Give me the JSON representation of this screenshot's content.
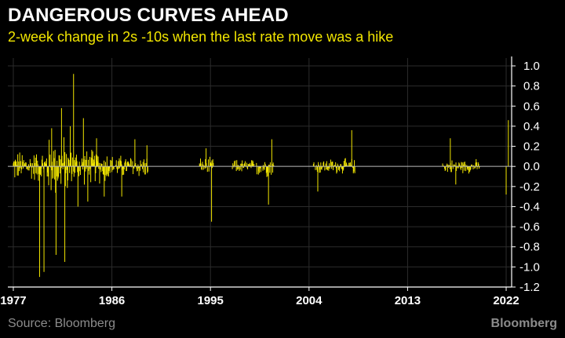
{
  "chart_data": {
    "type": "bar",
    "title": "DANGEROUS CURVES AHEAD",
    "subtitle": "2-week change in 2s -10s when the last rate move was a hike",
    "xlabel": "",
    "ylabel": "",
    "xlim": [
      1976.5,
      2022.5
    ],
    "ylim": [
      -1.2,
      1.0
    ],
    "y_ticks": [
      1.0,
      0.8,
      0.6,
      0.4,
      0.2,
      0.0,
      -0.2,
      -0.4,
      -0.6,
      -0.8,
      -1.0,
      -1.2
    ],
    "y_tick_labels": [
      "1.0",
      "0.8",
      "0.6",
      "0.4",
      "0.2",
      "0.0",
      "-0.2",
      "-0.4",
      "-0.6",
      "-0.8",
      "-1.0",
      "-1.2"
    ],
    "x_ticks": [
      1977,
      1986,
      1995,
      2004,
      2013,
      2022
    ],
    "x_tick_labels": [
      "1977",
      "1986",
      "1995",
      "2004",
      "2013",
      "2022"
    ],
    "y_axis_position": "right",
    "grid": true,
    "color": "#f2e600",
    "episodes": [
      {
        "start": 1977.0,
        "end": 1980.0,
        "amp": 0.18
      },
      {
        "start": 1980.0,
        "end": 1982.0,
        "amp": 0.35
      },
      {
        "start": 1982.0,
        "end": 1986.0,
        "amp": 0.2
      },
      {
        "start": 1986.0,
        "end": 1989.3,
        "amp": 0.13
      },
      {
        "start": 1994.0,
        "end": 1995.3,
        "amp": 0.1
      },
      {
        "start": 1997.0,
        "end": 1999.0,
        "amp": 0.08
      },
      {
        "start": 1999.2,
        "end": 2000.8,
        "amp": 0.12
      },
      {
        "start": 2004.4,
        "end": 2008.2,
        "amp": 0.09
      },
      {
        "start": 2016.2,
        "end": 2019.6,
        "amp": 0.08
      }
    ],
    "spikes": [
      {
        "x": 1979.4,
        "y": -1.1
      },
      {
        "x": 1979.8,
        "y": -1.05
      },
      {
        "x": 1980.5,
        "y": 0.38
      },
      {
        "x": 1980.9,
        "y": -0.88
      },
      {
        "x": 1981.4,
        "y": 0.58
      },
      {
        "x": 1981.7,
        "y": -0.95
      },
      {
        "x": 1982.2,
        "y": 0.4
      },
      {
        "x": 1982.5,
        "y": 0.92
      },
      {
        "x": 1982.9,
        "y": -0.4
      },
      {
        "x": 1983.4,
        "y": 0.48
      },
      {
        "x": 1983.8,
        "y": -0.35
      },
      {
        "x": 1984.6,
        "y": 0.28
      },
      {
        "x": 1985.3,
        "y": -0.3
      },
      {
        "x": 1986.9,
        "y": -0.3
      },
      {
        "x": 1988.1,
        "y": 0.27
      },
      {
        "x": 1989.2,
        "y": 0.21
      },
      {
        "x": 1995.1,
        "y": -0.55
      },
      {
        "x": 1994.6,
        "y": 0.18
      },
      {
        "x": 2000.3,
        "y": -0.38
      },
      {
        "x": 2000.6,
        "y": 0.27
      },
      {
        "x": 2004.8,
        "y": -0.25
      },
      {
        "x": 2007.9,
        "y": 0.36
      },
      {
        "x": 2016.9,
        "y": 0.28
      },
      {
        "x": 2017.4,
        "y": -0.18
      },
      {
        "x": 2022.2,
        "y": 0.46
      },
      {
        "x": 2022.0,
        "y": -0.28
      }
    ]
  },
  "footer": {
    "source": "Source: Bloomberg",
    "brand": "Bloomberg"
  }
}
